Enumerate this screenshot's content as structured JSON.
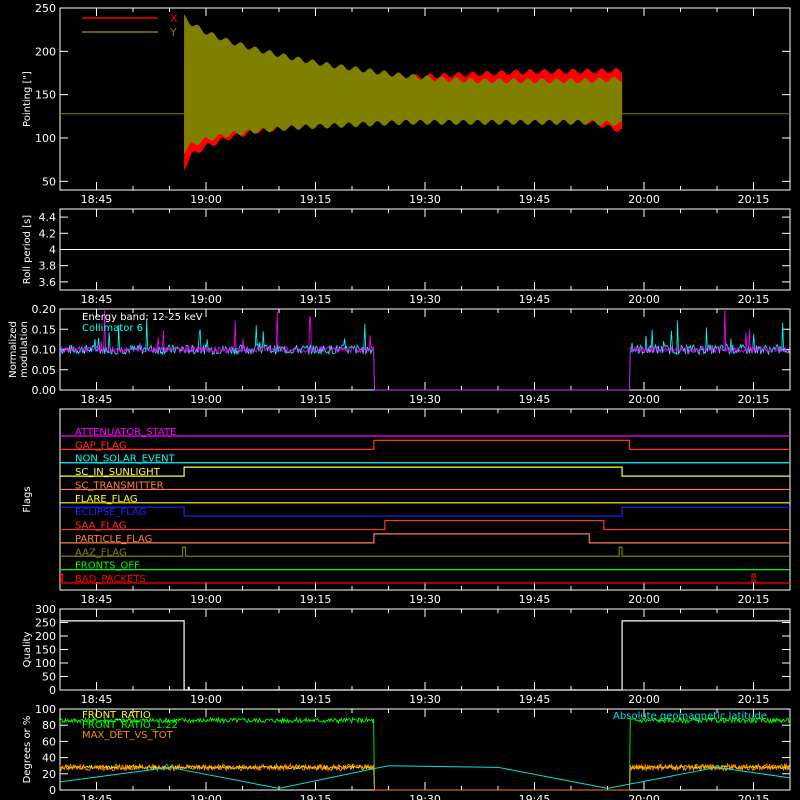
{
  "colors": {
    "background": "#000000",
    "axis": "#ffffff",
    "x_series": "#ff0000",
    "y_series": "#808000",
    "collimator": "#00ffff",
    "modulation": "#ff00ff",
    "front_ratio": "#ffff00",
    "front_ratio_22": "#00ff00",
    "max_det": "#ff8c00",
    "latitude": "#00e5e5"
  },
  "chart_data": [
    {
      "type": "line",
      "id": "pointing",
      "ylabel": "Pointing [\"]",
      "x_ticks": [
        "18:45",
        "19:00",
        "19:15",
        "19:30",
        "19:45",
        "20:00",
        "20:15"
      ],
      "x_tick_minutes": [
        0,
        15,
        30,
        45,
        60,
        75,
        90
      ],
      "xlim_minutes": [
        -5,
        95
      ],
      "ylim": [
        40,
        250
      ],
      "y_ticks": [
        50,
        100,
        150,
        200,
        250
      ],
      "baseline": 128,
      "data_window_minutes": [
        12,
        72
      ],
      "series": [
        {
          "name": "X",
          "color": "#ff0000",
          "envelope": {
            "x_minutes": [
              12,
              13,
              15,
              18,
              22,
              27,
              32,
              37,
              42,
              47,
              52,
              57,
              62,
              67,
              72
            ],
            "upper": [
              200,
              192,
              186,
              182,
              178,
              175,
              172,
              170,
              170,
              172,
              174,
              176,
              177,
              177,
              178
            ],
            "lower": [
              65,
              80,
              90,
              100,
              108,
              114,
              118,
              121,
              124,
              124,
              124,
              123,
              122,
              120,
              108
            ]
          }
        },
        {
          "name": "Y",
          "color": "#808000",
          "envelope": {
            "x_minutes": [
              12,
              13,
              15,
              18,
              22,
              27,
              32,
              37,
              42,
              47,
              52,
              57,
              62,
              67,
              72
            ],
            "upper": [
              240,
              232,
              222,
              212,
              202,
              192,
              184,
              178,
              172,
              168,
              166,
              166,
              166,
              166,
              168
            ],
            "lower": [
              85,
              92,
              98,
              104,
              108,
              112,
              114,
              116,
              118,
              118,
              118,
              118,
              118,
              118,
              116
            ]
          }
        }
      ]
    },
    {
      "type": "line",
      "id": "roll",
      "ylabel": "Roll period [s]",
      "x_ticks": [
        "18:45",
        "19:00",
        "19:15",
        "19:30",
        "19:45",
        "20:00",
        "20:15"
      ],
      "xlim_minutes": [
        -5,
        95
      ],
      "ylim": [
        3.5,
        4.5
      ],
      "y_ticks": [
        3.6,
        3.8,
        4.0,
        4.2,
        4.4
      ],
      "series": [
        {
          "x_minutes": [
            -5,
            95
          ],
          "values": [
            4.0,
            4.0
          ],
          "color": "#ffffff"
        }
      ]
    },
    {
      "type": "line",
      "id": "modulation",
      "ylabel": "Normalized modulation",
      "x_ticks": [
        "18:45",
        "19:00",
        "19:15",
        "19:30",
        "19:45",
        "20:00",
        "20:15"
      ],
      "xlim_minutes": [
        -5,
        95
      ],
      "ylim": [
        0,
        0.2
      ],
      "y_ticks": [
        0.0,
        0.05,
        0.1,
        0.15,
        0.2
      ],
      "y_tick_labels": [
        "0.00",
        "0.05",
        "0.10",
        "0.15",
        "0.20"
      ],
      "annotations": [
        "Energy band: 12-25 keV",
        "Collimator 6"
      ],
      "gap_minutes": [
        38,
        73
      ],
      "series": [
        {
          "color": "#00ffff",
          "baseline": 0.1,
          "noise": 0.012,
          "spike_level": 0.18
        },
        {
          "color": "#ff00ff",
          "baseline": 0.1,
          "noise": 0.008,
          "spike_level": 0.2
        }
      ]
    },
    {
      "type": "step",
      "id": "flags",
      "ylabel": "Flags",
      "x_ticks": [
        "18:45",
        "19:00",
        "19:15",
        "19:30",
        "19:45",
        "20:00",
        "20:15"
      ],
      "xlim_minutes": [
        -5,
        95
      ],
      "flags": [
        {
          "label": "ATTENUATOR_STATE",
          "color": "#ff00ff",
          "transitions": []
        },
        {
          "label": "GAP_FLAG",
          "color": "#ff3030",
          "transitions": [
            [
              38,
              73
            ]
          ]
        },
        {
          "label": "NON_SOLAR_EVENT",
          "color": "#00ffff",
          "transitions": []
        },
        {
          "label": "SC_IN_SUNLIGHT",
          "color": "#ffff40",
          "transitions": [
            [
              12,
              72
            ]
          ]
        },
        {
          "label": "SC_TRANSMITTER",
          "color": "#ff8040",
          "transitions": []
        },
        {
          "label": "FLARE_FLAG",
          "color": "#ffff00",
          "transitions": []
        },
        {
          "label": "ECLIPSE_FLAG",
          "color": "#2020ff",
          "inverted": true,
          "transitions": [
            [
              12,
              72
            ]
          ]
        },
        {
          "label": "SAA_FLAG",
          "color": "#ff3030",
          "transitions": [
            [
              39.5,
              69.5
            ]
          ]
        },
        {
          "label": "PARTICLE_FLAG",
          "color": "#ff8040",
          "transitions": [
            [
              38,
              67.5
            ]
          ]
        },
        {
          "label": "AAZ_FLAG",
          "color": "#808000",
          "transitions": [
            [
              11.8,
              12.2
            ],
            [
              71.6,
              72
            ]
          ]
        },
        {
          "label": "FRONTS_OFF",
          "color": "#00ff00",
          "transitions": []
        },
        {
          "label": "BAD_PACKETS",
          "color": "#ff0000",
          "transitions": [
            [
              -4.9,
              -4.7
            ],
            [
              89.8,
              90.2
            ]
          ]
        }
      ]
    },
    {
      "type": "step",
      "id": "quality",
      "ylabel": "Quality",
      "x_ticks": [
        "18:45",
        "19:00",
        "19:15",
        "19:30",
        "19:45",
        "20:00",
        "20:15"
      ],
      "xlim_minutes": [
        -5,
        95
      ],
      "ylim": [
        0,
        300
      ],
      "y_ticks": [
        0,
        50,
        100,
        150,
        200,
        250,
        300
      ],
      "series": [
        {
          "color": "#ffffff",
          "x_minutes": [
            -5,
            12,
            12,
            72,
            72,
            95
          ],
          "values": [
            256,
            256,
            0,
            0,
            256,
            256
          ]
        }
      ]
    },
    {
      "type": "line",
      "id": "ratios",
      "ylabel": "Degrees or %",
      "x_ticks": [
        "18:45",
        "19:00",
        "19:15",
        "19:30",
        "19:45",
        "20:00",
        "20:15"
      ],
      "xlim_minutes": [
        -5,
        95
      ],
      "ylim": [
        0,
        100
      ],
      "y_ticks": [
        0,
        20,
        40,
        60,
        80,
        100
      ],
      "gap_minutes": [
        38,
        73
      ],
      "series": [
        {
          "name": "FRONT_RATIO",
          "color": "#ffff00",
          "baseline": 28,
          "noise": 2
        },
        {
          "name": "FRONT_RATIO_1.22",
          "color": "#00ff00",
          "baseline": 86,
          "noise": 3
        },
        {
          "name": "MAX_DET_VS_TOT",
          "color": "#ff8c00",
          "baseline": 28,
          "noise": 4
        },
        {
          "name": "Absolute geomagnetic latitude",
          "color": "#00e5e5",
          "x_minutes": [
            -5,
            10,
            25,
            40,
            55,
            70,
            85,
            95
          ],
          "values": [
            10,
            28,
            2,
            30,
            28,
            2,
            28,
            15
          ]
        }
      ]
    }
  ]
}
